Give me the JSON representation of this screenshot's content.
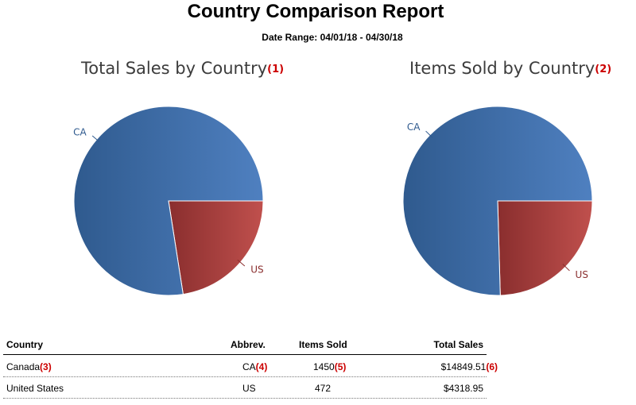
{
  "report": {
    "title": "Country Comparison Report",
    "date_range": "Date Range: 04/01/18 - 04/30/18"
  },
  "colors": {
    "ca_dark": "#2f5a8e",
    "ca_light": "#4f80c0",
    "us_dark": "#8a2e2e",
    "us_light": "#c0504d",
    "title_gray": "#3c3c3c",
    "marker_red": "#cc0000"
  },
  "chart_data": [
    {
      "type": "pie",
      "title": "Total Sales by Country",
      "marker": "(1)",
      "categories": [
        "CA",
        "US"
      ],
      "values": [
        14849.51,
        4318.95
      ]
    },
    {
      "type": "pie",
      "title": "Items Sold by Country",
      "marker": "(2)",
      "categories": [
        "CA",
        "US"
      ],
      "values": [
        1450,
        472
      ]
    }
  ],
  "table": {
    "headers": {
      "country": "Country",
      "abbrev": "Abbrev.",
      "items_sold": "Items Sold",
      "total_sales": "Total Sales"
    },
    "rows": [
      {
        "country": "Canada",
        "country_marker": "(3)",
        "abbrev": "CA",
        "abbrev_marker": "(4)",
        "items_sold": "1450",
        "items_marker": "(5)",
        "total_sales": "$14849.51",
        "sales_marker": "(6)"
      },
      {
        "country": "United States",
        "country_marker": "",
        "abbrev": "US",
        "abbrev_marker": "",
        "items_sold": "472",
        "items_marker": "",
        "total_sales": "$4318.95",
        "sales_marker": ""
      }
    ]
  }
}
